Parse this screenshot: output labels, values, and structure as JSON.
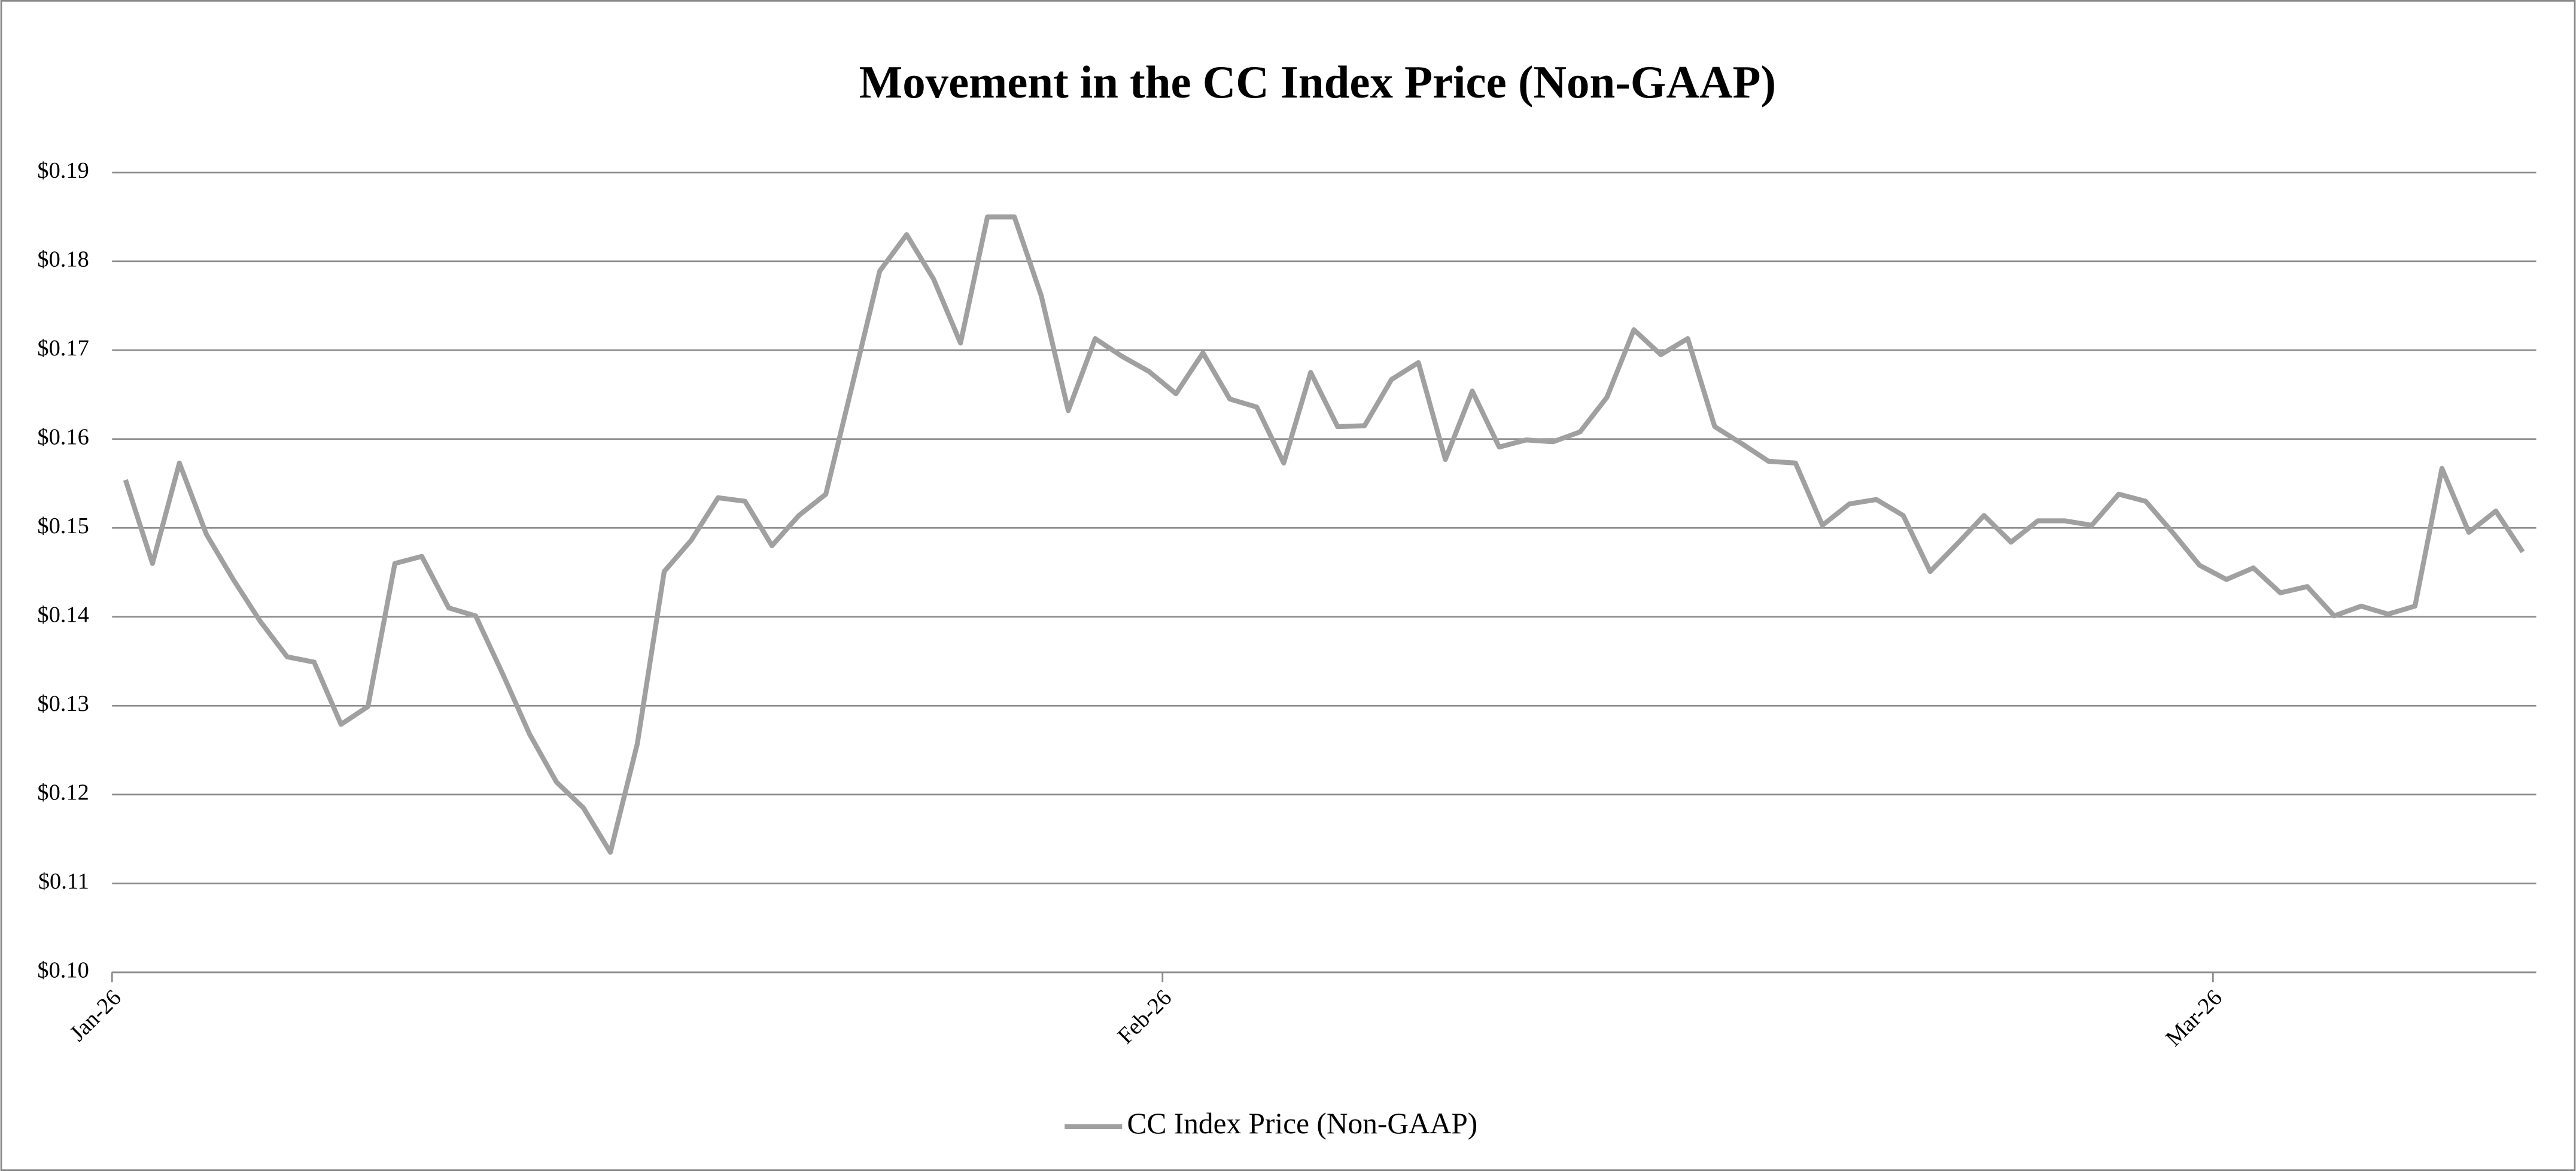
{
  "chart_data": {
    "type": "line",
    "title": "Movement in the CC Index Price (Non-GAAP)",
    "categories": [
      "Jan-26",
      null,
      null,
      null,
      null,
      null,
      null,
      null,
      null,
      null,
      null,
      null,
      null,
      null,
      null,
      null,
      null,
      null,
      null,
      null,
      null,
      null,
      null,
      null,
      null,
      null,
      null,
      null,
      null,
      null,
      null,
      null,
      null,
      null,
      null,
      null,
      null,
      null,
      null,
      "Feb-26",
      null,
      null,
      null,
      null,
      null,
      null,
      null,
      null,
      null,
      null,
      null,
      null,
      null,
      null,
      null,
      null,
      null,
      null,
      null,
      null,
      null,
      null,
      null,
      null,
      null,
      null,
      null,
      null,
      null,
      null,
      null,
      null,
      null,
      null,
      null,
      null,
      null,
      null,
      "Mar-26",
      null,
      null,
      null,
      null,
      null,
      null,
      null,
      null,
      null,
      null,
      null
    ],
    "series": [
      {
        "name": "CC Index Price (Non-GAAP)",
        "color": "#a0a0a0",
        "values": [
          0.1554,
          0.146,
          0.1573,
          0.1493,
          0.1442,
          0.1395,
          0.1355,
          0.1349,
          0.1279,
          0.1299,
          0.146,
          0.1468,
          0.141,
          0.1401,
          0.1336,
          0.1268,
          0.1214,
          0.1185,
          0.1135,
          0.1257,
          0.1451,
          0.1486,
          0.1534,
          0.153,
          0.148,
          0.1514,
          0.1538,
          0.1663,
          0.1789,
          0.183,
          0.178,
          0.1708,
          0.185,
          0.185,
          0.1761,
          0.1632,
          0.1713,
          0.1693,
          0.1676,
          0.1651,
          0.1697,
          0.1645,
          0.1636,
          0.1573,
          0.1675,
          0.1614,
          0.1615,
          0.1667,
          0.1686,
          0.1577,
          0.1654,
          0.1591,
          0.1599,
          0.1597,
          0.1608,
          0.1647,
          0.1723,
          0.1695,
          0.1713,
          0.1614,
          0.1595,
          0.1575,
          0.1573,
          0.1503,
          0.1527,
          0.1532,
          0.1514,
          0.1451,
          0.1482,
          0.1514,
          0.1484,
          0.1508,
          0.1508,
          0.1503,
          0.1538,
          0.153,
          0.1495,
          0.1458,
          0.1442,
          0.1455,
          0.1427,
          0.1434,
          0.1401,
          0.1412,
          0.1403,
          0.1412,
          0.1567,
          0.1495,
          0.1519,
          0.1473
        ]
      }
    ],
    "ylim": [
      0.1,
      0.19
    ],
    "yticks": [
      {
        "value": 0.1,
        "label": "$0.10"
      },
      {
        "value": 0.11,
        "label": "$0.11"
      },
      {
        "value": 0.12,
        "label": "$0.12"
      },
      {
        "value": 0.13,
        "label": "$0.13"
      },
      {
        "value": 0.14,
        "label": "$0.14"
      },
      {
        "value": 0.15,
        "label": "$0.15"
      },
      {
        "value": 0.16,
        "label": "$0.16"
      },
      {
        "value": 0.17,
        "label": "$0.17"
      },
      {
        "value": 0.18,
        "label": "$0.18"
      },
      {
        "value": 0.19,
        "label": "$0.19"
      }
    ],
    "grid": true,
    "legend": "bottom"
  }
}
